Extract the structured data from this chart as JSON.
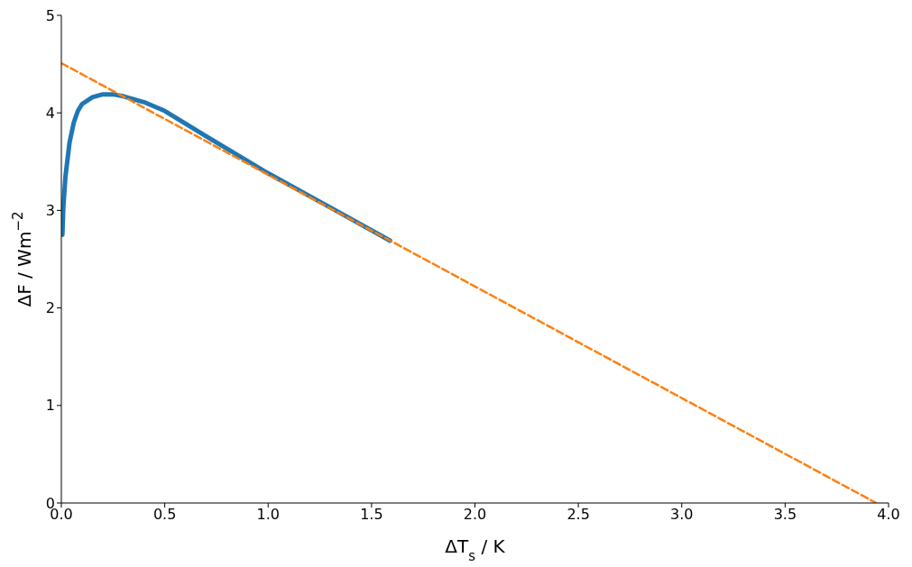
{
  "chart_data": {
    "type": "line",
    "xlabel": "ΔT$_{s}$ / K",
    "ylabel": "ΔF / Wm$^{−2}$",
    "xlim": [
      0,
      4
    ],
    "xticks": [
      {
        "value": 0,
        "label": "0.0"
      },
      {
        "value": 0.5,
        "label": "0.5"
      },
      {
        "value": 1,
        "label": "1.0"
      },
      {
        "value": 1.5,
        "label": "1.5"
      },
      {
        "value": 2,
        "label": "2.0"
      },
      {
        "value": 2.5,
        "label": "2.5"
      },
      {
        "value": 3,
        "label": "3.0"
      },
      {
        "value": 3.5,
        "label": "3.5"
      },
      {
        "value": 4,
        "label": "4.0"
      }
    ],
    "ylim": [
      0,
      5
    ],
    "yticks": [
      0,
      1,
      2,
      3,
      4,
      5
    ],
    "grid": false,
    "legend": false,
    "marker": "none",
    "series": [
      {
        "color": "#1f77b4",
        "line_style": "solid",
        "x": [
          0.005,
          0.01,
          0.02,
          0.04,
          0.06,
          0.08,
          0.1,
          0.15,
          0.2,
          0.25,
          0.3,
          0.4,
          0.5,
          0.7,
          1.0,
          1.3,
          1.59
        ],
        "values": [
          2.75,
          3.05,
          3.35,
          3.7,
          3.9,
          4.02,
          4.09,
          4.16,
          4.19,
          4.19,
          4.17,
          4.11,
          4.02,
          3.76,
          3.38,
          3.03,
          2.69
        ]
      },
      {
        "color": "#ff7f0e",
        "line_style": "dashed",
        "x": [
          0,
          3.94
        ],
        "values": [
          4.51,
          0
        ]
      }
    ]
  }
}
